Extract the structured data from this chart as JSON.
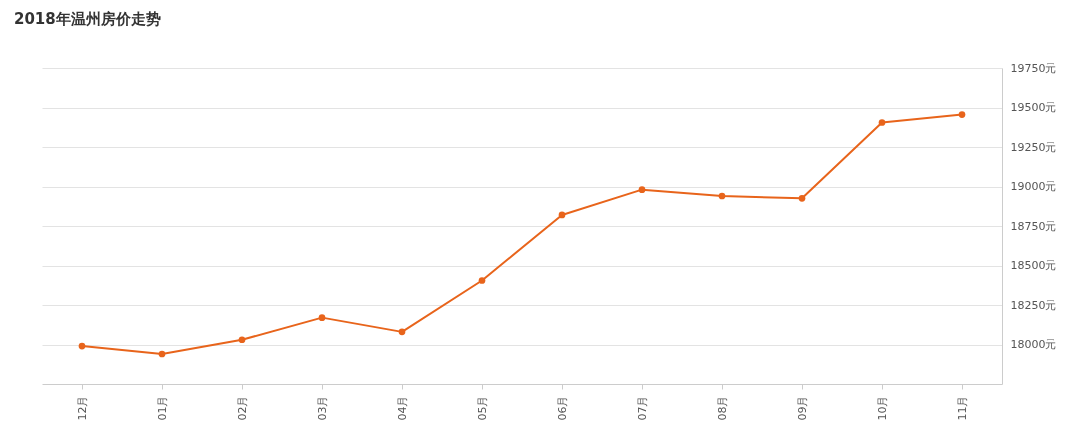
{
  "chart_data": {
    "type": "line",
    "title": "2018年温州房价走势",
    "categories": [
      "12月",
      "01月",
      "02月",
      "03月",
      "04月",
      "05月",
      "06月",
      "07月",
      "08月",
      "09月",
      "10月",
      "11月"
    ],
    "series": [
      {
        "color": "#e8641b",
        "values": [
          17990,
          17940,
          18030,
          18170,
          18080,
          18405,
          18820,
          18980,
          18940,
          18925,
          19405,
          19455
        ]
      }
    ],
    "ylim": [
      17750,
      19750
    ],
    "yticks": [
      {
        "value": 18000,
        "label": "18000元"
      },
      {
        "value": 18250,
        "label": "18250元"
      },
      {
        "value": 18500,
        "label": "18500元"
      },
      {
        "value": 18750,
        "label": "18750元"
      },
      {
        "value": 19000,
        "label": "19000元"
      },
      {
        "value": 19250,
        "label": "19250元"
      },
      {
        "value": 19500,
        "label": "19500元"
      },
      {
        "value": 19750,
        "label": "19750元"
      }
    ],
    "grid": "y",
    "marker": "circle",
    "line_style": "solid"
  }
}
